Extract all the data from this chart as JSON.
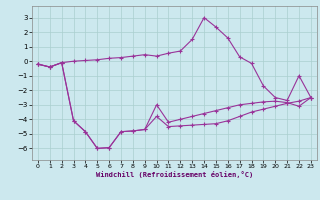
{
  "xlabel": "Windchill (Refroidissement éolien,°C)",
  "background_color": "#cce8ee",
  "grid_color": "#aacfcf",
  "line_color": "#993399",
  "xlim": [
    -0.5,
    23.5
  ],
  "ylim": [
    -6.8,
    3.8
  ],
  "xticks": [
    0,
    1,
    2,
    3,
    4,
    5,
    6,
    7,
    8,
    9,
    10,
    11,
    12,
    13,
    14,
    15,
    16,
    17,
    18,
    19,
    20,
    21,
    22,
    23
  ],
  "yticks": [
    -6,
    -5,
    -4,
    -3,
    -2,
    -1,
    0,
    1,
    2,
    3
  ],
  "line1_y": [
    -0.2,
    -0.4,
    -0.1,
    0.0,
    0.05,
    0.1,
    0.2,
    0.25,
    0.35,
    0.45,
    0.35,
    0.55,
    0.7,
    1.5,
    3.0,
    2.35,
    1.6,
    0.3,
    -0.15,
    -1.7,
    -2.5,
    -2.7,
    -1.0,
    -2.5
  ],
  "line2_y": [
    -0.2,
    -0.4,
    -0.1,
    -4.1,
    -4.85,
    -6.0,
    -5.95,
    -4.85,
    -4.8,
    -4.7,
    -3.8,
    -4.5,
    -4.45,
    -4.4,
    -4.35,
    -4.3,
    -4.1,
    -3.8,
    -3.5,
    -3.3,
    -3.1,
    -2.9,
    -2.75,
    -2.5
  ],
  "line3_y": [
    -0.2,
    -0.4,
    -0.1,
    -4.1,
    -4.85,
    -6.0,
    -5.95,
    -4.85,
    -4.8,
    -4.7,
    -3.0,
    -4.2,
    -4.0,
    -3.8,
    -3.6,
    -3.4,
    -3.2,
    -3.0,
    -2.9,
    -2.8,
    -2.75,
    -2.85,
    -3.1,
    -2.5
  ]
}
